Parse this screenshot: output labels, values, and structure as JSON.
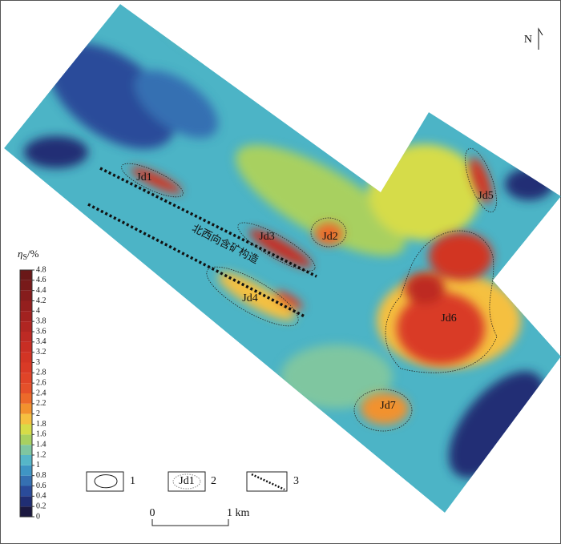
{
  "north": "N",
  "colorbar": {
    "symbol": "η",
    "subscript": "S",
    "unit": "/%",
    "ticks": [
      0,
      0.2,
      0.4,
      0.6,
      0.8,
      1,
      1.2,
      1.4,
      1.6,
      1.8,
      2,
      2.2,
      2.4,
      2.6,
      2.8,
      3,
      3.2,
      3.4,
      3.6,
      3.8,
      4,
      4.2,
      4.4,
      4.6,
      4.8
    ],
    "colors": [
      "#1b1840",
      "#202e74",
      "#2a4b9a",
      "#3570b2",
      "#3f95c4",
      "#56b6c8",
      "#7fc6a0",
      "#a8d060",
      "#d6dc48",
      "#f5c040",
      "#f2922e",
      "#ec6a2a",
      "#e5502a",
      "#e04428",
      "#d93a26",
      "#d23424",
      "#c82e24",
      "#bd2a24",
      "#b02622",
      "#a22220",
      "#941f1e",
      "#861c1c",
      "#781a1a",
      "#6a1818"
    ]
  },
  "anomalies": [
    "Jd1",
    "Jd2",
    "Jd3",
    "Jd4",
    "Jd5",
    "Jd6",
    "Jd7"
  ],
  "structure_label": "北西向含矿构造",
  "legend": {
    "items": [
      "1",
      "2",
      "3"
    ],
    "sample": "Jd1"
  },
  "scale": {
    "start": "0",
    "end": "1 km"
  }
}
